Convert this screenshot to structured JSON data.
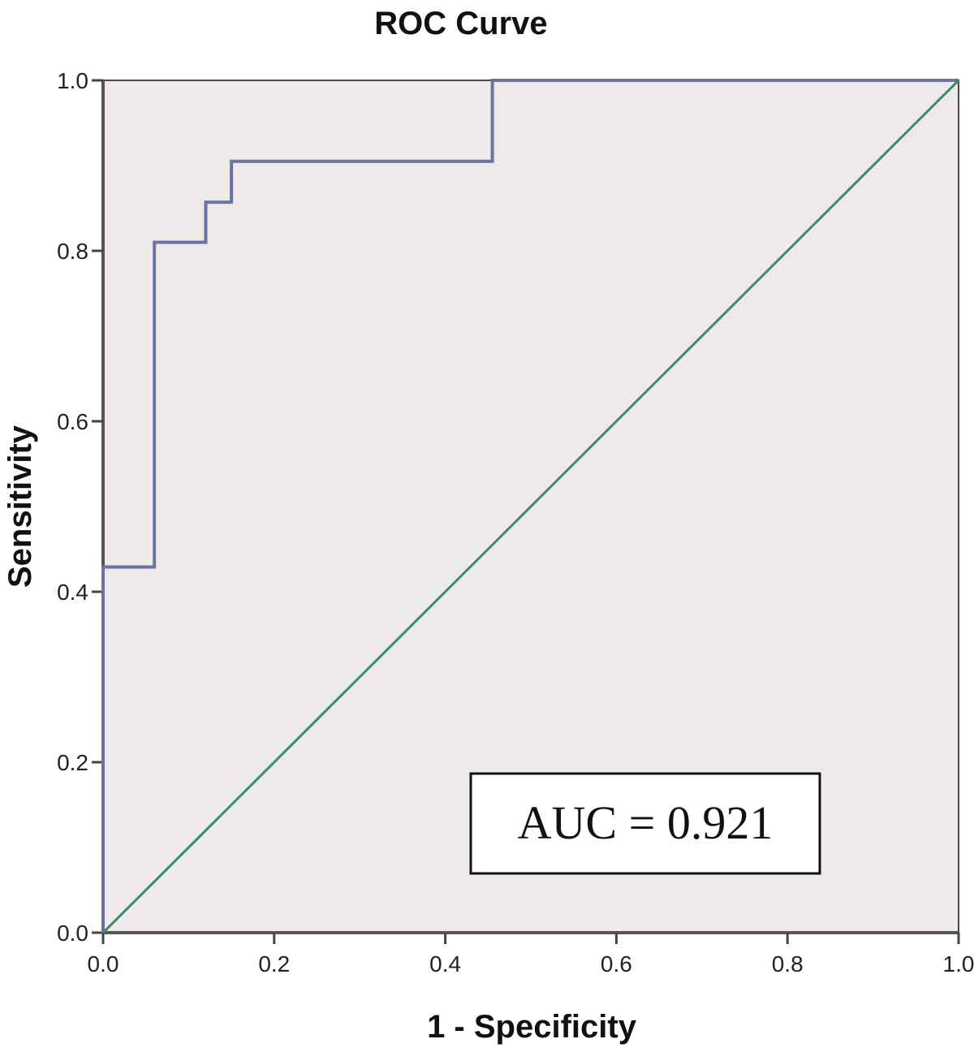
{
  "chart_data": {
    "type": "line",
    "title": "ROC Curve",
    "xlabel": "1 - Specificity",
    "ylabel": "Sensitivity",
    "xlim": [
      0.0,
      1.0
    ],
    "ylim": [
      0.0,
      1.0
    ],
    "xticks": [
      "0.0",
      "0.2",
      "0.4",
      "0.6",
      "0.8",
      "1.0"
    ],
    "yticks": [
      "0.0",
      "0.2",
      "0.4",
      "0.6",
      "0.8",
      "1.0"
    ],
    "grid": false,
    "series": [
      {
        "color": "#6b73a0",
        "x": [
          0.0,
          0.0,
          0.06,
          0.06,
          0.12,
          0.12,
          0.15,
          0.15,
          0.455,
          0.455,
          1.0
        ],
        "y": [
          0.0,
          0.429,
          0.429,
          0.81,
          0.81,
          0.857,
          0.857,
          0.905,
          0.905,
          1.0,
          1.0
        ]
      },
      {
        "color": "#3a8c6e",
        "x": [
          0.0,
          1.0
        ],
        "y": [
          0.0,
          1.0
        ]
      }
    ],
    "annotation": "AUC = 0.921",
    "plot_background": "#efeaea"
  }
}
